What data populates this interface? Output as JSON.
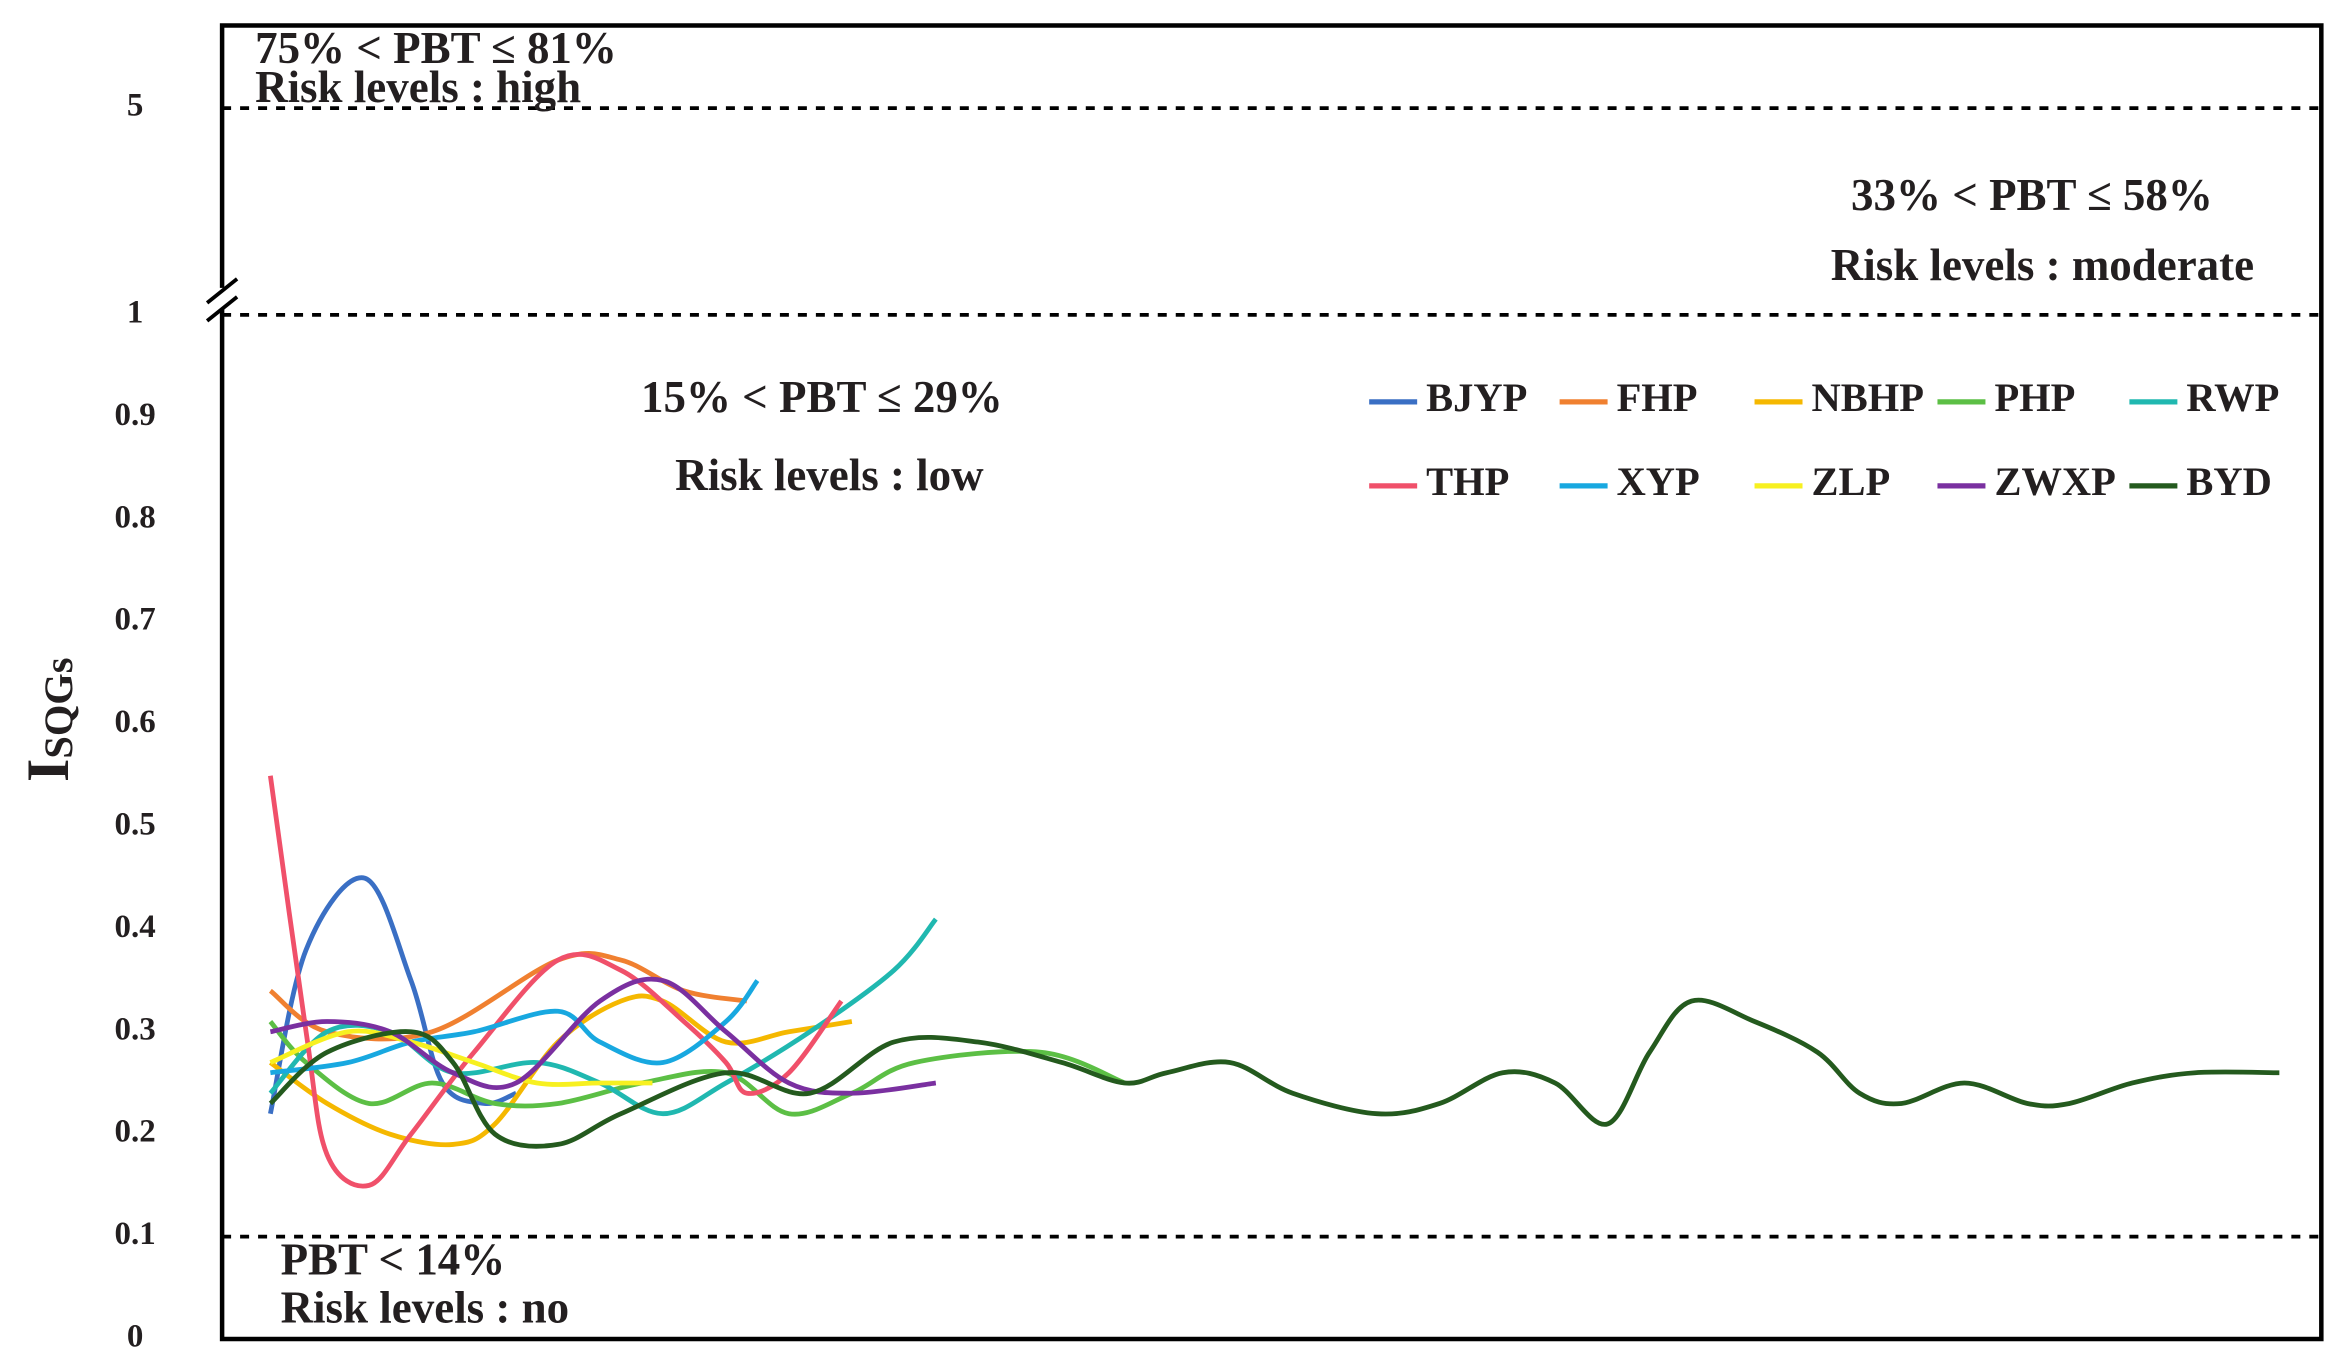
{
  "chart_data": {
    "type": "line",
    "ylabel": "I",
    "ylabel_sub": "SQGs",
    "xlim": [
      0,
      100
    ],
    "ylim": [
      0,
      6.6
    ],
    "y_break": 1,
    "yticks": [
      0,
      0.1,
      0.2,
      0.3,
      0.4,
      0.5,
      0.6,
      0.7,
      0.8,
      0.9,
      1,
      5
    ],
    "threshold_lines": [
      0.1,
      1,
      5
    ],
    "annotations": [
      "75% < PBT ≤ 81%",
      "Risk levels : high",
      "33% < PBT ≤ 58%",
      "Risk levels : moderate",
      "15% < PBT ≤ 29%",
      "Risk levels : low",
      "PBT < 14%",
      "Risk levels : no"
    ],
    "series": [
      {
        "name": "BJYP",
        "color": "#3a6fc4",
        "x": [
          2.3,
          4,
          6.8,
          9,
          10.5,
          12.5,
          14
        ],
        "values": [
          0.22,
          0.38,
          0.45,
          0.35,
          0.25,
          0.23,
          0.24
        ]
      },
      {
        "name": "FHP",
        "color": "#f08030",
        "x": [
          2.3,
          5,
          10,
          16,
          19,
          22,
          25
        ],
        "values": [
          0.34,
          0.3,
          0.3,
          0.37,
          0.37,
          0.34,
          0.33
        ]
      },
      {
        "name": "NBHP",
        "color": "#f5b800",
        "x": [
          2.3,
          5,
          8,
          11,
          13,
          16,
          19,
          21,
          24,
          27,
          30
        ],
        "values": [
          0.27,
          0.23,
          0.2,
          0.19,
          0.21,
          0.29,
          0.33,
          0.33,
          0.29,
          0.3,
          0.31
        ]
      },
      {
        "name": "PHP",
        "color": "#5cbf45",
        "x": [
          2.3,
          4,
          7,
          10,
          13,
          16,
          20,
          24,
          27,
          30,
          33,
          39,
          43
        ],
        "values": [
          0.31,
          0.27,
          0.23,
          0.25,
          0.23,
          0.23,
          0.25,
          0.26,
          0.22,
          0.24,
          0.27,
          0.28,
          0.25
        ]
      },
      {
        "name": "RWP",
        "color": "#20b8b0",
        "x": [
          2.3,
          5,
          8,
          11,
          15,
          18,
          21,
          24,
          28,
          32,
          34
        ],
        "values": [
          0.24,
          0.3,
          0.3,
          0.26,
          0.27,
          0.25,
          0.22,
          0.25,
          0.3,
          0.36,
          0.41
        ]
      },
      {
        "name": "THP",
        "color": "#f0506a",
        "x": [
          2.3,
          4,
          5,
          7,
          9,
          12,
          16,
          19,
          22,
          24,
          25,
          27,
          29.5
        ],
        "values": [
          0.55,
          0.3,
          0.18,
          0.15,
          0.2,
          0.28,
          0.37,
          0.36,
          0.31,
          0.27,
          0.24,
          0.26,
          0.33
        ]
      },
      {
        "name": "XYP",
        "color": "#18a8e0",
        "x": [
          2.3,
          6,
          9,
          12,
          16,
          18,
          21,
          24,
          25.5
        ],
        "values": [
          0.26,
          0.27,
          0.29,
          0.3,
          0.32,
          0.29,
          0.27,
          0.31,
          0.35
        ]
      },
      {
        "name": "ZLP",
        "color": "#f7f020",
        "x": [
          2.3,
          6,
          9,
          12,
          15,
          18,
          20.5
        ],
        "values": [
          0.27,
          0.3,
          0.29,
          0.27,
          0.25,
          0.25,
          0.25
        ]
      },
      {
        "name": "ZWXP",
        "color": "#7a30a0",
        "x": [
          2.3,
          5,
          8,
          11,
          14,
          18,
          21,
          24,
          27,
          30,
          34
        ],
        "values": [
          0.3,
          0.31,
          0.3,
          0.26,
          0.25,
          0.33,
          0.35,
          0.3,
          0.25,
          0.24,
          0.25
        ]
      },
      {
        "name": "BYD",
        "color": "#245a1e",
        "x": [
          2.3,
          5,
          9,
          11,
          13,
          16,
          19,
          24,
          28,
          32,
          36,
          40,
          43,
          45,
          48,
          51,
          55,
          58,
          61,
          63.5,
          66,
          68,
          70,
          73,
          76,
          78,
          80,
          83,
          86,
          88,
          91,
          94,
          98
        ],
        "values": [
          0.23,
          0.28,
          0.3,
          0.27,
          0.2,
          0.19,
          0.22,
          0.26,
          0.24,
          0.29,
          0.29,
          0.27,
          0.25,
          0.26,
          0.27,
          0.24,
          0.22,
          0.23,
          0.26,
          0.25,
          0.21,
          0.28,
          0.33,
          0.31,
          0.28,
          0.24,
          0.23,
          0.25,
          0.23,
          0.23,
          0.25,
          0.26,
          0.26
        ]
      }
    ]
  }
}
